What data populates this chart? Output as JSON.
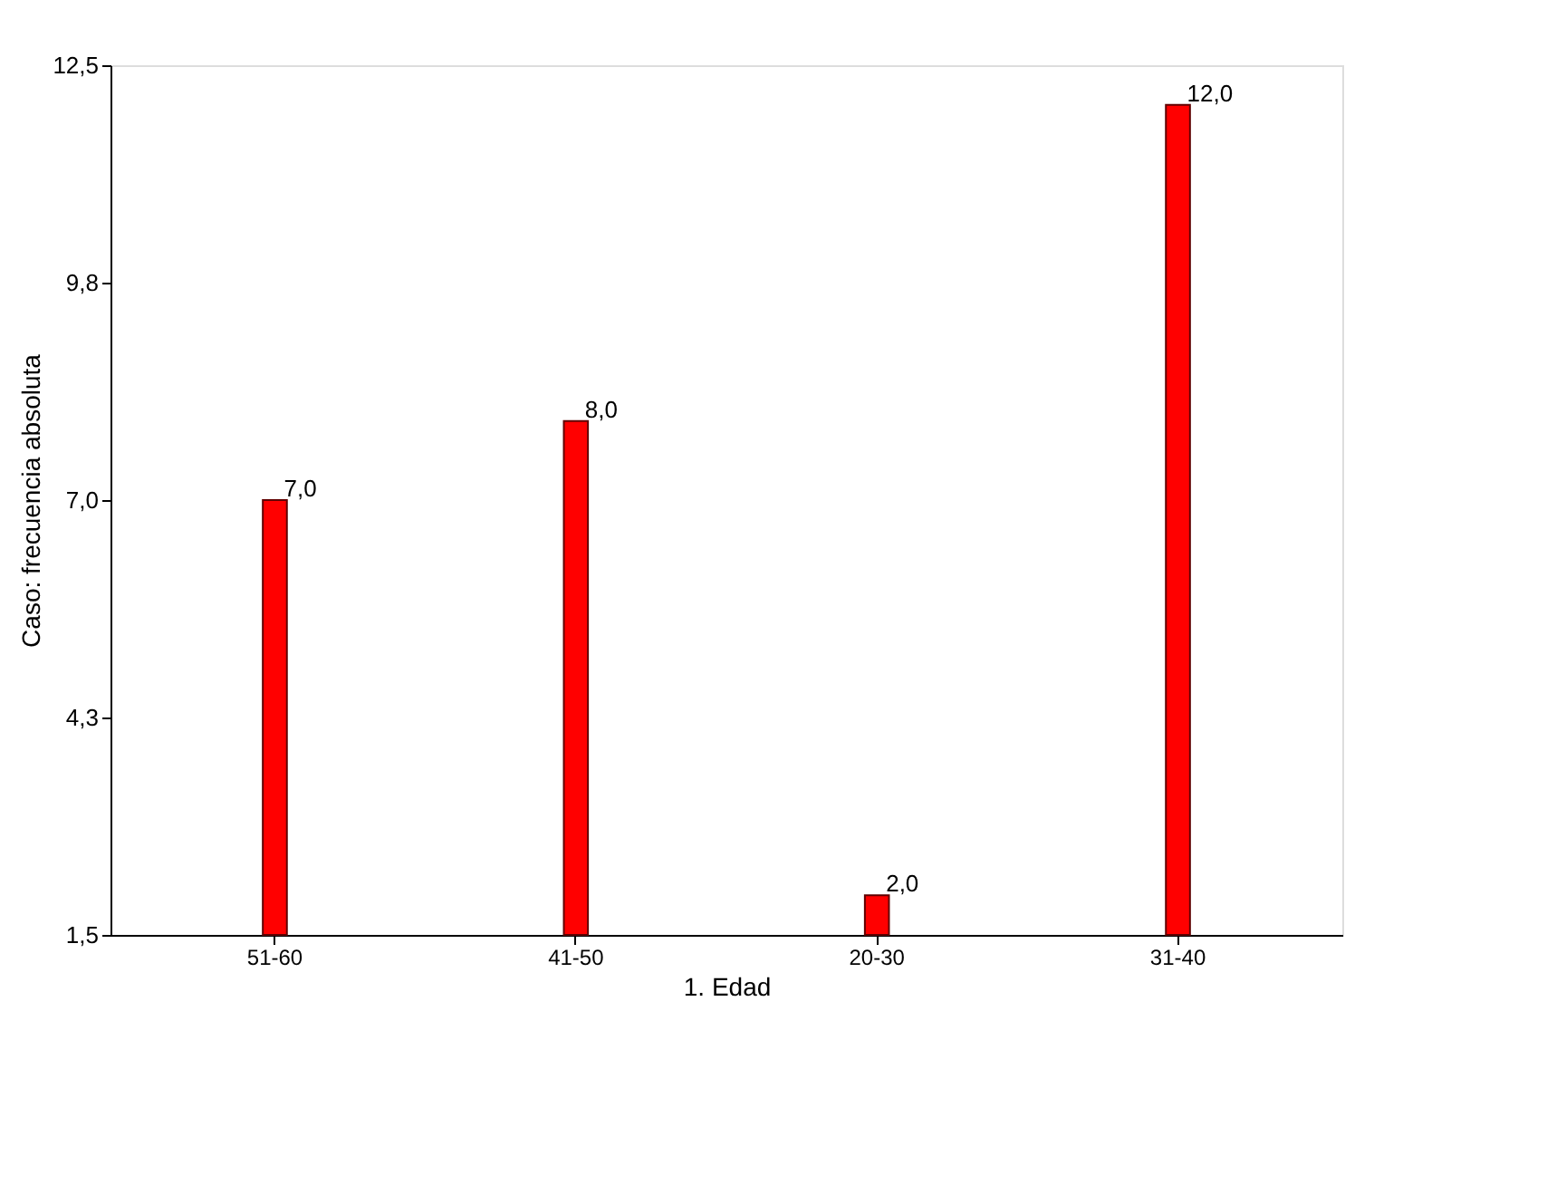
{
  "chart_data": {
    "type": "bar",
    "xlabel": "1. Edad",
    "ylabel": "Caso: frecuencia absoluta",
    "categories": [
      "51-60",
      "41-50",
      "20-30",
      "31-40"
    ],
    "values": [
      7,
      8,
      2,
      12
    ],
    "color": "#ff0000",
    "value_labels": [
      "7,0",
      "8,0",
      "2,0",
      "12,0"
    ],
    "ylim": [
      1.5,
      12.5
    ],
    "yticks": [
      {
        "value": 1.5,
        "label": "1,5"
      },
      {
        "value": 4.25,
        "label": "4,3"
      },
      {
        "value": 7,
        "label": "7,0"
      },
      {
        "value": 9.75,
        "label": "9,8"
      },
      {
        "value": 12.5,
        "label": "12,5"
      }
    ],
    "grid": false
  }
}
